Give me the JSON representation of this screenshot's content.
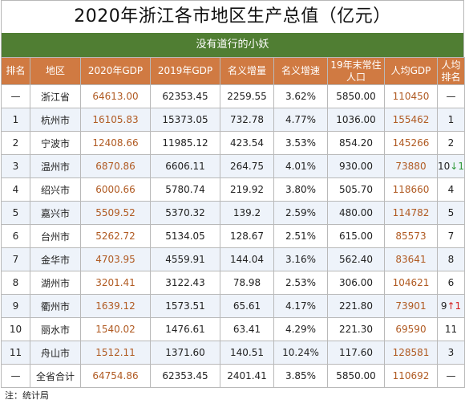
{
  "title": "2020年浙江各市地区生产总值（亿元）",
  "subtitle": "没有道行的小妖",
  "headers": [
    "排名",
    "地区",
    "2020年GDP",
    "2019年GDP",
    "名义增量",
    "名义增速",
    "19年末常住人口",
    "人均GDP",
    "人均排名"
  ],
  "rows": [
    {
      "rank": "—",
      "region": "浙江省",
      "gdp2020": "64613.00",
      "gdp2019": "62353.45",
      "increase": "2259.55",
      "growth": "3.62%",
      "population": "5850.00",
      "per_capita": "110450",
      "pc_rank": "—",
      "pc_arrow": "",
      "pc_dir": ""
    },
    {
      "rank": "1",
      "region": "杭州市",
      "gdp2020": "16105.83",
      "gdp2019": "15373.05",
      "increase": "732.78",
      "growth": "4.77%",
      "population": "1036.00",
      "per_capita": "155462",
      "pc_rank": "1",
      "pc_arrow": "",
      "pc_dir": ""
    },
    {
      "rank": "2",
      "region": "宁波市",
      "gdp2020": "12408.66",
      "gdp2019": "11985.12",
      "increase": "423.54",
      "growth": "3.53%",
      "population": "854.20",
      "per_capita": "145266",
      "pc_rank": "2",
      "pc_arrow": "",
      "pc_dir": ""
    },
    {
      "rank": "3",
      "region": "温州市",
      "gdp2020": "6870.86",
      "gdp2019": "6606.11",
      "increase": "264.75",
      "growth": "4.01%",
      "population": "930.00",
      "per_capita": "73880",
      "pc_rank": "10",
      "pc_arrow": "↓1",
      "pc_dir": "down"
    },
    {
      "rank": "4",
      "region": "绍兴市",
      "gdp2020": "6000.66",
      "gdp2019": "5780.74",
      "increase": "219.92",
      "growth": "3.80%",
      "population": "505.70",
      "per_capita": "118660",
      "pc_rank": "4",
      "pc_arrow": "",
      "pc_dir": ""
    },
    {
      "rank": "5",
      "region": "嘉兴市",
      "gdp2020": "5509.52",
      "gdp2019": "5370.32",
      "increase": "139.2",
      "growth": "2.59%",
      "population": "480.00",
      "per_capita": "114782",
      "pc_rank": "5",
      "pc_arrow": "",
      "pc_dir": ""
    },
    {
      "rank": "6",
      "region": "台州市",
      "gdp2020": "5262.72",
      "gdp2019": "5134.05",
      "increase": "128.67",
      "growth": "2.51%",
      "population": "615.00",
      "per_capita": "85573",
      "pc_rank": "7",
      "pc_arrow": "",
      "pc_dir": ""
    },
    {
      "rank": "7",
      "region": "金华市",
      "gdp2020": "4703.95",
      "gdp2019": "4559.91",
      "increase": "144.04",
      "growth": "3.16%",
      "population": "562.40",
      "per_capita": "83641",
      "pc_rank": "8",
      "pc_arrow": "",
      "pc_dir": ""
    },
    {
      "rank": "8",
      "region": "湖州市",
      "gdp2020": "3201.41",
      "gdp2019": "3122.43",
      "increase": "78.98",
      "growth": "2.53%",
      "population": "306.00",
      "per_capita": "104621",
      "pc_rank": "6",
      "pc_arrow": "",
      "pc_dir": ""
    },
    {
      "rank": "9",
      "region": "衢州市",
      "gdp2020": "1639.12",
      "gdp2019": "1573.51",
      "increase": "65.61",
      "growth": "4.17%",
      "population": "221.80",
      "per_capita": "73901",
      "pc_rank": "9",
      "pc_arrow": "↑1",
      "pc_dir": "up"
    },
    {
      "rank": "10",
      "region": "丽水市",
      "gdp2020": "1540.02",
      "gdp2019": "1476.61",
      "increase": "63.41",
      "growth": "4.29%",
      "population": "221.30",
      "per_capita": "69590",
      "pc_rank": "11",
      "pc_arrow": "",
      "pc_dir": ""
    },
    {
      "rank": "11",
      "region": "舟山市",
      "gdp2020": "1512.11",
      "gdp2019": "1371.60",
      "increase": "140.51",
      "growth": "10.24%",
      "population": "117.60",
      "per_capita": "128581",
      "pc_rank": "3",
      "pc_arrow": "",
      "pc_dir": ""
    },
    {
      "rank": "—",
      "region": "全省合计",
      "gdp2020": "64754.86",
      "gdp2019": "62353.45",
      "increase": "2401.41",
      "growth": "3.85%",
      "population": "5850.00",
      "per_capita": "110692",
      "pc_rank": "—",
      "pc_arrow": "",
      "pc_dir": ""
    }
  ],
  "note": "注：统计局"
}
